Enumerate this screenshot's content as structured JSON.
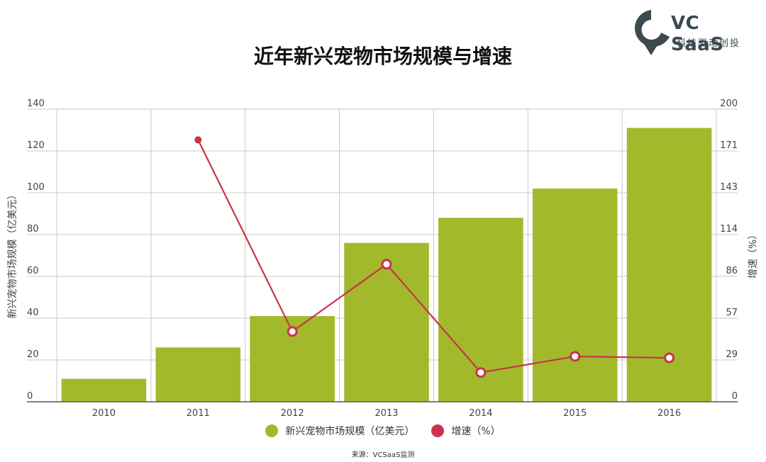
{
  "logo": {
    "brand": "VC SaaS",
    "slogan": "科技驱动创投"
  },
  "source": "来源：VCSaaS监测",
  "colors": {
    "bar": "#a3b92c",
    "line": "#c8344a",
    "grid": "#c8c8c8",
    "axis": "#555555"
  },
  "chart_data": {
    "type": "bar",
    "title": "近年新兴宠物市场规模与增速",
    "categories": [
      "2010",
      "2011",
      "2012",
      "2013",
      "2014",
      "2015",
      "2016"
    ],
    "series": [
      {
        "name": "新兴宠物市场规模（亿美元）",
        "type": "bar",
        "axis": "left",
        "values": [
          11,
          26,
          41,
          76,
          88,
          102,
          131
        ]
      },
      {
        "name": "增速（%）",
        "type": "line",
        "axis": "right",
        "values": [
          null,
          179,
          48,
          94,
          20,
          31,
          30
        ]
      }
    ],
    "ylabel": "新兴宠物市场规模（亿美元）",
    "y2label": "增速（%）",
    "ylim": [
      0,
      140
    ],
    "y2lim": [
      0,
      200
    ],
    "yticks": [
      "0",
      "20",
      "40",
      "60",
      "80",
      "100",
      "120",
      "140"
    ],
    "y2ticks": [
      "0",
      "29",
      "57",
      "86",
      "114",
      "143",
      "171",
      "200"
    ],
    "grid": true,
    "legend_position": "bottom"
  }
}
